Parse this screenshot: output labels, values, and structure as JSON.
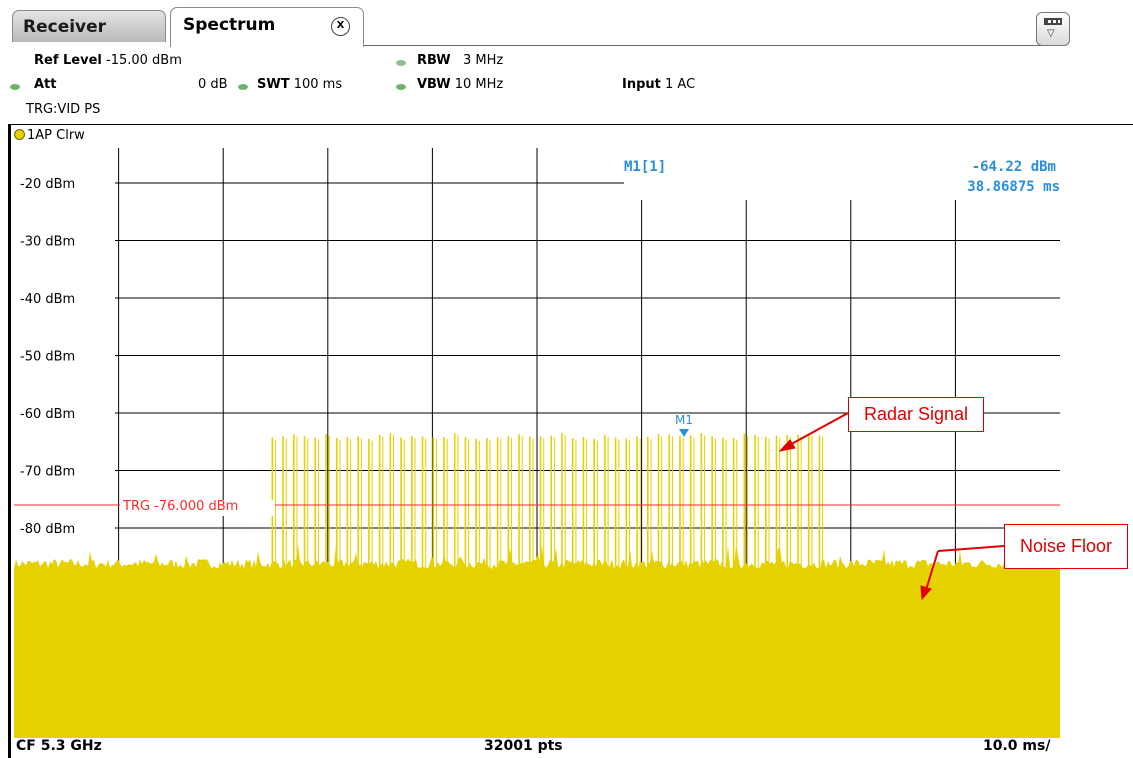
{
  "tabs": {
    "receiver": "Receiver",
    "spectrum": "Spectrum",
    "close_glyph": "X"
  },
  "settings": {
    "ref_level_label": "Ref Level",
    "ref_level_value": "-15.00 dBm",
    "att_label": "Att",
    "att_value": "0 dB",
    "swt_label": "SWT",
    "swt_value": "100 ms",
    "rbw_label": "RBW",
    "rbw_value": "3 MHz",
    "vbw_label": "VBW",
    "vbw_value": "10 MHz",
    "input_label": "Input",
    "input_value": "1 AC",
    "trigger": "TRG:VID PS"
  },
  "trace": {
    "label": "1AP Clrw",
    "color": "#e5d100"
  },
  "marker": {
    "name": "M1[1]",
    "level": "-64.22 dBm",
    "time": "38.86875 ms",
    "tag": "M1",
    "color": "#2a8fd8"
  },
  "trigger_line": {
    "label": "TRG -76.000 dBm",
    "color": "#ff2a2a"
  },
  "callouts": {
    "radar": "Radar Signal",
    "noise": "Noise Floor"
  },
  "footer": {
    "cf": "CF 5.3 GHz",
    "points": "32001 pts",
    "span": "10.0 ms/"
  },
  "chart_data": {
    "type": "line",
    "ylabels": [
      "-20 dBm",
      "-30 dBm",
      "-40 dBm",
      "-50 dBm",
      "-60 dBm",
      "-70 dBm",
      "-80 dBm"
    ],
    "yvalues": [
      -20,
      -30,
      -40,
      -50,
      -60,
      -70,
      -80
    ],
    "ylim": [
      -15,
      -110
    ],
    "xlim_ms": [
      0,
      100
    ],
    "x_div_ms": 10.0,
    "trigger_level_dbm": -76.0,
    "noise_floor_dbm": -86,
    "radar_pulse_level_dbm": -64,
    "radar_pulse_start_ms": 24.7,
    "radar_pulse_end_ms": 77.0,
    "radar_pulse_count": 52,
    "marker_time_ms": 38.86875,
    "marker_level_dbm": -64.22
  }
}
